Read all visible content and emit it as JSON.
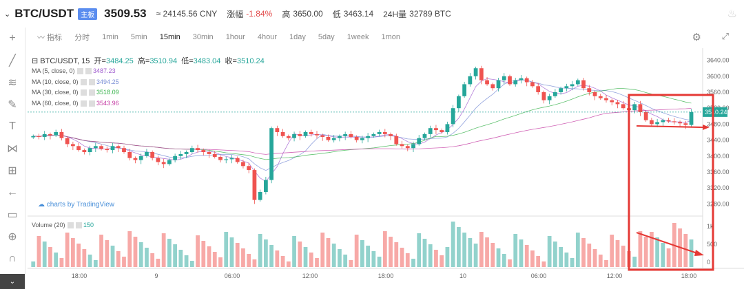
{
  "header": {
    "pair": "BTC/USDT",
    "tag": "主板",
    "price": "3509.53",
    "cny": "≈ 24145.56 CNY",
    "change_label": "涨幅",
    "change": "-1.84%",
    "high_label": "高",
    "high": "3650.00",
    "low_label": "低",
    "low": "3463.14",
    "vol_label": "24H量",
    "vol": "32789 BTC"
  },
  "toolbar": {
    "indicator": "指标",
    "items": [
      "分时",
      "1min",
      "5min",
      "15min",
      "30min",
      "1hour",
      "4hour",
      "1day",
      "5day",
      "1week",
      "1mon"
    ],
    "active": "15min"
  },
  "legend": {
    "title": "BTC/USDT, 15",
    "open_label": "开=",
    "open": "3484.25",
    "high_label": "高=",
    "high": "3510.94",
    "low_label": "低=",
    "low": "3483.04",
    "close_label": "收=",
    "close": "3510.24",
    "ma": [
      {
        "name": "MA (5, close, 0)",
        "value": "3487.23",
        "color": "#a05ecf"
      },
      {
        "name": "MA (10, close, 0)",
        "value": "3494.25",
        "color": "#7b8fd6"
      },
      {
        "name": "MA (30, close, 0)",
        "value": "3518.09",
        "color": "#36b24a"
      },
      {
        "name": "MA (60, close, 0)",
        "value": "3543.96",
        "color": "#c43aa3"
      }
    ],
    "volume_label": "Volume (20)",
    "volume_value": "150"
  },
  "branding": "charts by TradingView",
  "chart_data": {
    "type": "candlestick",
    "price_axis": [
      "3640.00",
      "3600.00",
      "3560.00",
      "3520.00",
      "3480.00",
      "3440.00",
      "3400.00",
      "3360.00",
      "3320.00",
      "3280.00"
    ],
    "price_badge": "3510.24",
    "volume_axis": [
      "1k",
      "500",
      "0"
    ],
    "time_axis": [
      "18:00",
      "9",
      "06:00",
      "12:00",
      "18:00",
      "10",
      "06:00",
      "12:00",
      "18:00"
    ],
    "ylim": [
      3260,
      3660
    ],
    "colors": {
      "up": "#26a69a",
      "down": "#ef5350",
      "box": "#e53935"
    },
    "closes": [
      3450,
      3448,
      3455,
      3452,
      3460,
      3445,
      3430,
      3425,
      3415,
      3410,
      3420,
      3425,
      3418,
      3415,
      3425,
      3420,
      3410,
      3395,
      3390,
      3400,
      3410,
      3395,
      3385,
      3380,
      3390,
      3400,
      3405,
      3410,
      3420,
      3415,
      3410,
      3405,
      3398,
      3390,
      3392,
      3395,
      3385,
      3375,
      3365,
      3290,
      3310,
      3340,
      3470,
      3460,
      3450,
      3445,
      3455,
      3450,
      3460,
      3455,
      3452,
      3448,
      3440,
      3445,
      3450,
      3455,
      3448,
      3440,
      3445,
      3450,
      3455,
      3460,
      3455,
      3450,
      3430,
      3425,
      3420,
      3430,
      3445,
      3455,
      3470,
      3465,
      3460,
      3480,
      3520,
      3550,
      3580,
      3600,
      3620,
      3590,
      3580,
      3570,
      3590,
      3600,
      3580,
      3590,
      3595,
      3585,
      3575,
      3560,
      3540,
      3550,
      3560,
      3570,
      3575,
      3580,
      3590,
      3570,
      3560,
      3550,
      3545,
      3540,
      3535,
      3530,
      3520,
      3515,
      3530,
      3510,
      3490,
      3480,
      3485,
      3490,
      3487,
      3485,
      3482,
      3478,
      3510
    ]
  }
}
